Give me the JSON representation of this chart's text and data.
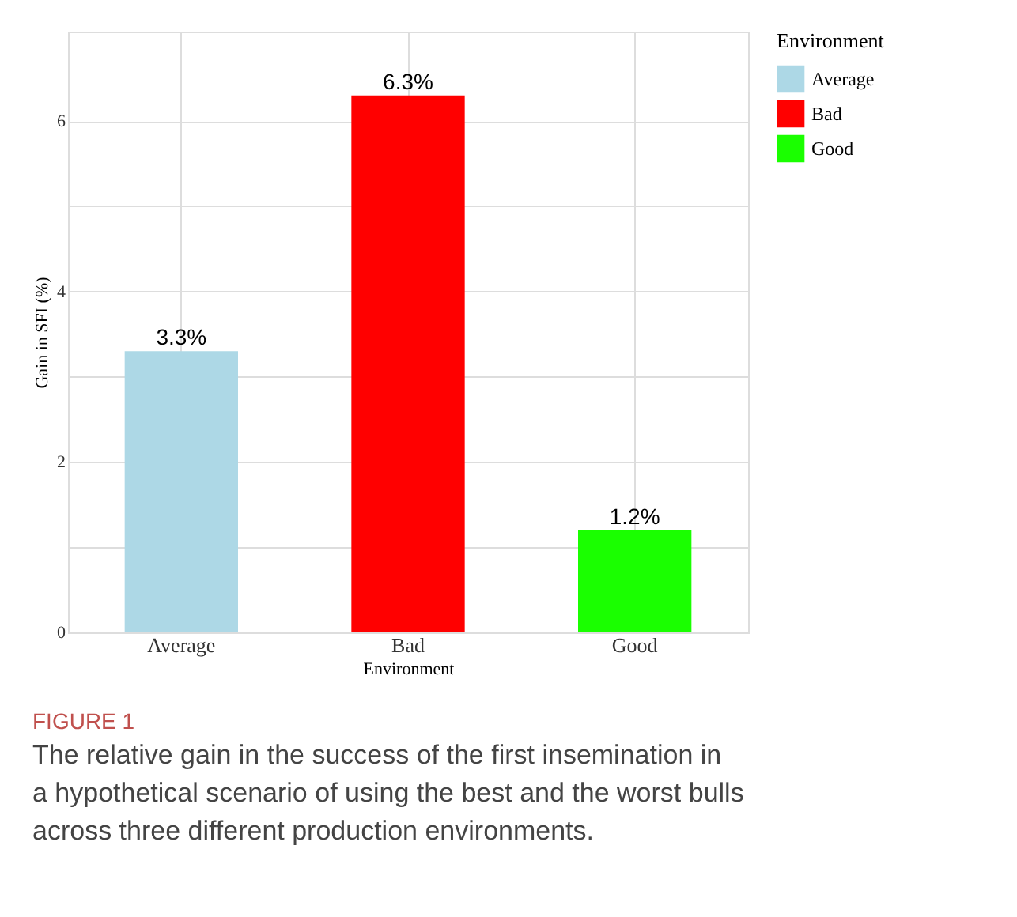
{
  "chart_data": {
    "type": "bar",
    "stacked": true,
    "categories": [
      "Average",
      "Bad",
      "Good"
    ],
    "series": [
      {
        "name": "Average",
        "color": "#add8e6",
        "values": [
          3.3,
          null,
          null
        ],
        "value_labels": [
          "3.3%",
          null,
          null
        ]
      },
      {
        "name": "Bad",
        "color": "#ff0000",
        "values": [
          null,
          6.3,
          null
        ],
        "value_labels": [
          null,
          "6.3%",
          null
        ]
      },
      {
        "name": "Good",
        "color": "#1aff00",
        "values": [
          null,
          null,
          1.2
        ],
        "value_labels": [
          null,
          null,
          "1.2%"
        ]
      }
    ],
    "xlabel": "Environment",
    "ylabel": "Gain in SFI (%)",
    "legend_title": "Environment",
    "ylim": [
      0,
      7.05
    ],
    "yticks": [
      0,
      {
        "value": 1,
        "label": null
      },
      2,
      {
        "value": 3,
        "label": null
      },
      4,
      {
        "value": 5,
        "label": null
      },
      6
    ],
    "grid": true,
    "legend": "right",
    "annotations": [
      "FIGURE 1",
      "The relative gain in the success of the first insemination in a hypothetical scenario of using the best and the worst bulls across three different production environments."
    ]
  }
}
